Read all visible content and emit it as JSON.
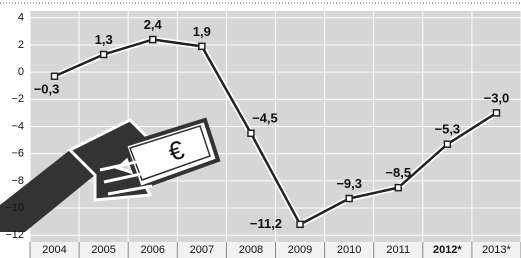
{
  "chart_data": {
    "type": "line",
    "categories": [
      "2004",
      "2005",
      "2006",
      "2007",
      "2008",
      "2009",
      "2010",
      "2011",
      "2012*",
      "2013*"
    ],
    "values": [
      -0.3,
      1.3,
      2.4,
      1.9,
      -4.5,
      -11.2,
      -9.3,
      -8.5,
      -5.3,
      -3.0
    ],
    "value_labels": [
      "−0,3",
      "1,3",
      "2,4",
      "1,9",
      "−4,5",
      "−11,2",
      "−9,3",
      "−8,5",
      "−5,3",
      "−3,0"
    ],
    "ylim": [
      -12.5,
      4.5
    ],
    "yticks": [
      4,
      2,
      0,
      {
        "value": -2,
        "label": "−2"
      },
      {
        "value": -4,
        "label": "−4"
      },
      {
        "value": -6,
        "label": "−6"
      },
      {
        "value": -8,
        "label": "−8"
      },
      {
        "value": -10,
        "label": "−10"
      },
      {
        "value": -12,
        "label": "−12"
      }
    ],
    "color": "#222222",
    "grid": true
  }
}
